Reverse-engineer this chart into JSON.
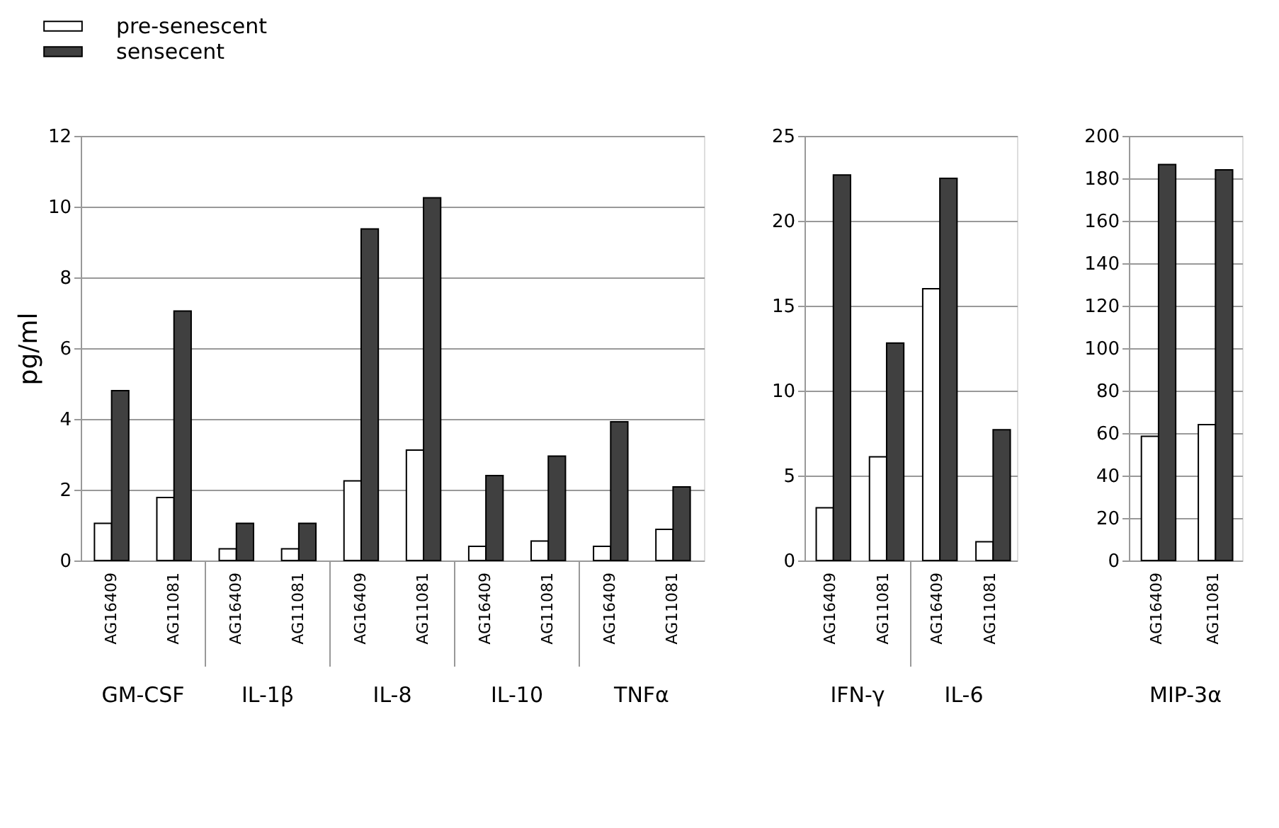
{
  "chart_data": [
    {
      "type": "bar",
      "ylabel": "pg/ml",
      "categories": [
        "AG16409",
        "AG11081",
        "AG16409",
        "AG11081",
        "AG16409",
        "AG11081",
        "AG16409",
        "AG11081",
        "AG16409",
        "AG11081"
      ],
      "series": [
        {
          "name": "pre-senescent",
          "color": "#ffffff",
          "values": [
            1.05,
            1.78,
            0.33,
            0.33,
            2.25,
            3.12,
            0.4,
            0.55,
            0.4,
            0.88
          ]
        },
        {
          "name": "sensecent",
          "color": "#404040",
          "values": [
            4.8,
            7.05,
            1.05,
            1.05,
            9.37,
            10.25,
            2.4,
            2.95,
            3.92,
            2.08
          ]
        }
      ],
      "ylim": [
        0,
        12
      ],
      "yticks": [
        0,
        2,
        4,
        6,
        8,
        10,
        12
      ],
      "grid": "y",
      "legend": "top left",
      "annotations": [
        "GM-CSF",
        "IL-1β",
        "IL-8",
        "IL-10",
        "TNFα"
      ]
    },
    {
      "type": "bar",
      "categories": [
        "AG16409",
        "AG11081",
        "AG16409",
        "AG11081"
      ],
      "series": [
        {
          "color": "#ffffff",
          "values": [
            3.1,
            6.1,
            16.0,
            1.1
          ]
        },
        {
          "color": "#404040",
          "values": [
            22.7,
            12.8,
            22.5,
            7.7
          ]
        }
      ],
      "ylim": [
        0,
        25
      ],
      "yticks": [
        0,
        5,
        10,
        15,
        20,
        25
      ],
      "grid": "y",
      "annotations": [
        "IFN-γ",
        "IL-6"
      ]
    },
    {
      "type": "bar",
      "categories": [
        "AG16409",
        "AG11081"
      ],
      "series": [
        {
          "color": "#ffffff",
          "values": [
            58.5,
            64
          ]
        },
        {
          "color": "#404040",
          "values": [
            186.5,
            184
          ]
        }
      ],
      "ylim": [
        0,
        200
      ],
      "yticks": [
        0,
        20,
        40,
        60,
        80,
        100,
        120,
        140,
        160,
        180,
        200
      ],
      "grid": "y",
      "annotations": [
        "MIP-3α"
      ]
    }
  ]
}
